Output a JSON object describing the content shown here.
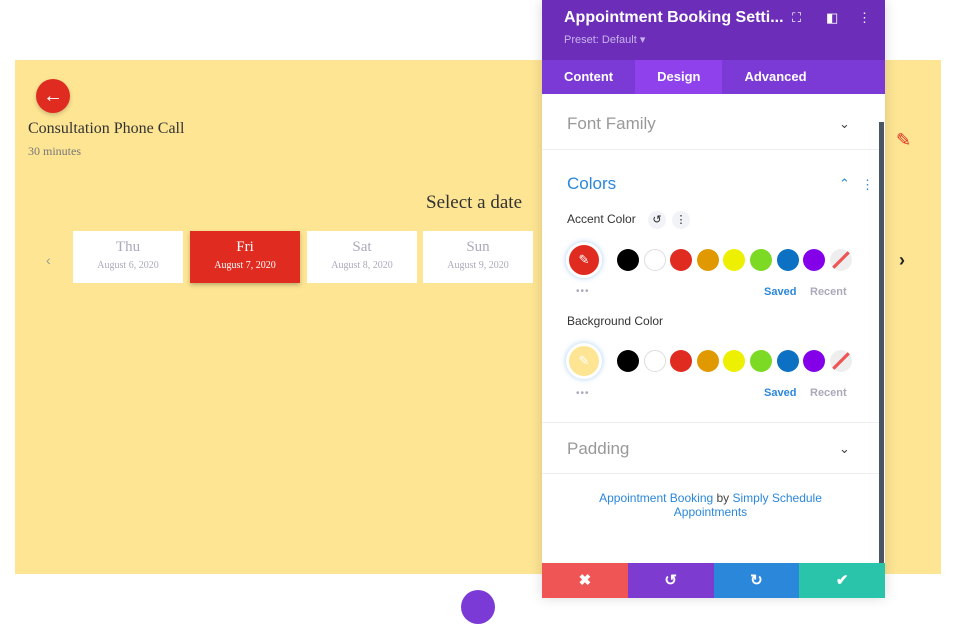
{
  "booking": {
    "title": "Consultation Phone Call",
    "duration": "30 minutes",
    "select_date": "Select a date",
    "days": [
      {
        "name": "Thu",
        "date": "August 6, 2020"
      },
      {
        "name": "Fri",
        "date": "August 7, 2020",
        "selected": true
      },
      {
        "name": "Sat",
        "date": "August 8, 2020"
      },
      {
        "name": "Sun",
        "date": "August 9, 2020"
      }
    ],
    "accent": "#e02b20",
    "background": "#fde593"
  },
  "panel": {
    "title": "Appointment Booking Setti...",
    "preset": "Preset: Default ▾",
    "tabs": [
      "Content",
      "Design",
      "Advanced"
    ],
    "active_tab": "Design",
    "font_family": "Font Family",
    "colors": "Colors",
    "accent_label": "Accent Color",
    "background_label": "Background Color",
    "swatches": [
      "#000000",
      "#ffffff",
      "#e02b20",
      "#e09900",
      "#edf000",
      "#7cda24",
      "#0c71c3",
      "#8300e9"
    ],
    "saved": "Saved",
    "recent": "Recent",
    "padding": "Padding",
    "credit": {
      "link1": "Appointment Booking",
      "by": " by ",
      "link2": "Simply Schedule Appointments"
    }
  }
}
